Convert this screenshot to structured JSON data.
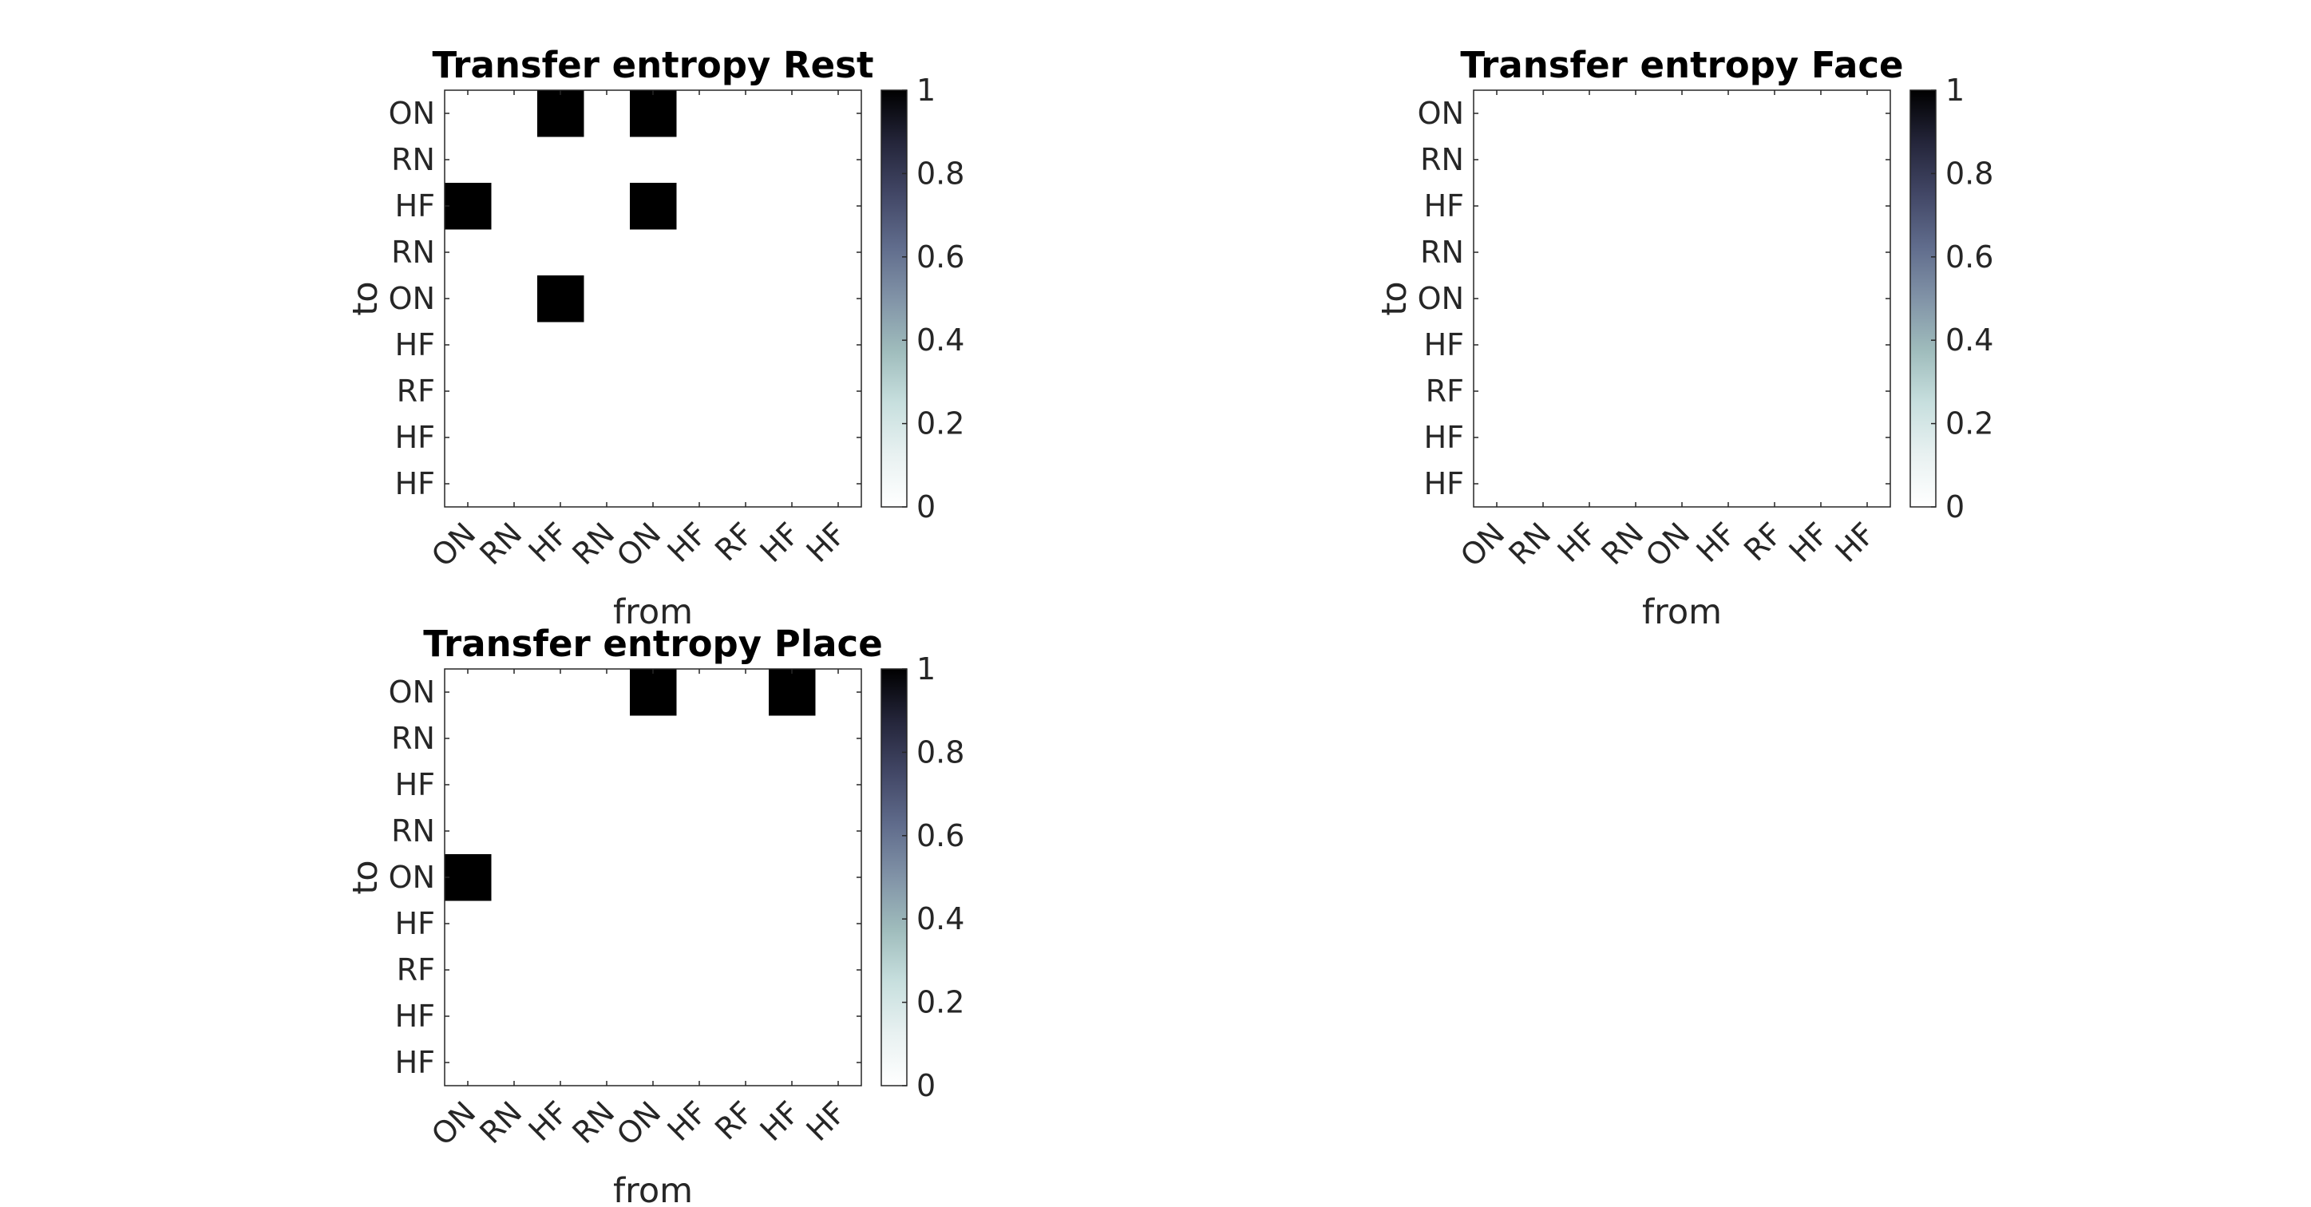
{
  "chart_data": [
    {
      "type": "heatmap",
      "title": "Transfer entropy Rest",
      "xlabel": "from",
      "ylabel": "to",
      "x_categories": [
        "ON",
        "RN",
        "HF",
        "RN",
        "ON",
        "HF",
        "RF",
        "HF",
        "HF"
      ],
      "y_categories": [
        "ON",
        "RN",
        "HF",
        "RN",
        "ON",
        "HF",
        "RF",
        "HF",
        "HF"
      ],
      "values": [
        [
          0,
          0,
          1,
          0,
          1,
          0,
          0,
          0,
          0
        ],
        [
          0,
          0,
          0,
          0,
          0,
          0,
          0,
          0,
          0
        ],
        [
          1,
          0,
          0,
          0,
          1,
          0,
          0,
          0,
          0
        ],
        [
          0,
          0,
          0,
          0,
          0,
          0,
          0,
          0,
          0
        ],
        [
          0,
          0,
          1,
          0,
          0,
          0,
          0,
          0,
          0
        ],
        [
          0,
          0,
          0,
          0,
          0,
          0,
          0,
          0,
          0
        ],
        [
          0,
          0,
          0,
          0,
          0,
          0,
          0,
          0,
          0
        ],
        [
          0,
          0,
          0,
          0,
          0,
          0,
          0,
          0,
          0
        ],
        [
          0,
          0,
          0,
          0,
          0,
          0,
          0,
          0,
          0
        ]
      ],
      "colorbar": {
        "range": [
          0,
          1
        ],
        "ticks": [
          "0",
          "0.2",
          "0.4",
          "0.6",
          "0.8",
          "1"
        ]
      },
      "colormap": "bone-reversed",
      "grid": false
    },
    {
      "type": "heatmap",
      "title": "Transfer entropy Face",
      "xlabel": "from",
      "ylabel": "to",
      "x_categories": [
        "ON",
        "RN",
        "HF",
        "RN",
        "ON",
        "HF",
        "RF",
        "HF",
        "HF"
      ],
      "y_categories": [
        "ON",
        "RN",
        "HF",
        "RN",
        "ON",
        "HF",
        "RF",
        "HF",
        "HF"
      ],
      "values": [
        [
          0,
          0,
          0,
          0,
          0,
          0,
          0,
          0,
          0
        ],
        [
          0,
          0,
          0,
          0,
          0,
          0,
          0,
          0,
          0
        ],
        [
          0,
          0,
          0,
          0,
          0,
          0,
          0,
          0,
          0
        ],
        [
          0,
          0,
          0,
          0,
          0,
          0,
          0,
          0,
          0
        ],
        [
          0,
          0,
          0,
          0,
          0,
          0,
          0,
          0,
          0
        ],
        [
          0,
          0,
          0,
          0,
          0,
          0,
          0,
          0,
          0
        ],
        [
          0,
          0,
          0,
          0,
          0,
          0,
          0,
          0,
          0
        ],
        [
          0,
          0,
          0,
          0,
          0,
          0,
          0,
          0,
          0
        ],
        [
          0,
          0,
          0,
          0,
          0,
          0,
          0,
          0,
          0
        ]
      ],
      "colorbar": {
        "range": [
          0,
          1
        ],
        "ticks": [
          "0",
          "0.2",
          "0.4",
          "0.6",
          "0.8",
          "1"
        ]
      },
      "colormap": "bone-reversed",
      "grid": false
    },
    {
      "type": "heatmap",
      "title": "Transfer entropy Place",
      "xlabel": "from",
      "ylabel": "to",
      "x_categories": [
        "ON",
        "RN",
        "HF",
        "RN",
        "ON",
        "HF",
        "RF",
        "HF",
        "HF"
      ],
      "y_categories": [
        "ON",
        "RN",
        "HF",
        "RN",
        "ON",
        "HF",
        "RF",
        "HF",
        "HF"
      ],
      "values": [
        [
          0,
          0,
          0,
          0,
          1,
          0,
          0,
          1,
          0
        ],
        [
          0,
          0,
          0,
          0,
          0,
          0,
          0,
          0,
          0
        ],
        [
          0,
          0,
          0,
          0,
          0,
          0,
          0,
          0,
          0
        ],
        [
          0,
          0,
          0,
          0,
          0,
          0,
          0,
          0,
          0
        ],
        [
          1,
          0,
          0,
          0,
          0,
          0,
          0,
          0,
          0
        ],
        [
          0,
          0,
          0,
          0,
          0,
          0,
          0,
          0,
          0
        ],
        [
          0,
          0,
          0,
          0,
          0,
          0,
          0,
          0,
          0
        ],
        [
          0,
          0,
          0,
          0,
          0,
          0,
          0,
          0,
          0
        ],
        [
          0,
          0,
          0,
          0,
          0,
          0,
          0,
          0,
          0
        ]
      ],
      "colorbar": {
        "range": [
          0,
          1
        ],
        "ticks": [
          "0",
          "0.2",
          "0.4",
          "0.6",
          "0.8",
          "1"
        ]
      },
      "colormap": "bone-reversed",
      "grid": false
    }
  ]
}
